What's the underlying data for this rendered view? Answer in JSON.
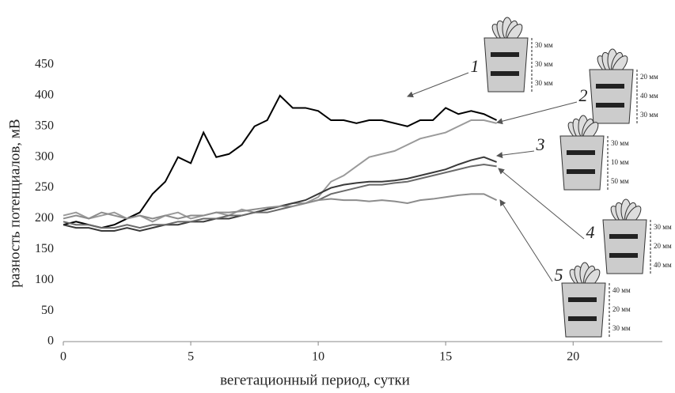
{
  "chart_data": {
    "type": "line",
    "ylabel": "разность потенциалов, мВ",
    "xlabel": "вегетационный период, сутки",
    "xlim": [
      0,
      23.5
    ],
    "ylim": [
      0,
      450
    ],
    "xticks": [
      0,
      5,
      10,
      15,
      20
    ],
    "yticks": [
      0,
      50,
      100,
      150,
      200,
      250,
      300,
      350,
      400,
      450
    ],
    "x": [
      0,
      0.5,
      1,
      1.5,
      2,
      2.5,
      3,
      3.5,
      4,
      4.5,
      5,
      5.5,
      6,
      6.5,
      7,
      7.5,
      8,
      8.5,
      9,
      9.5,
      10,
      10.5,
      11,
      11.5,
      12,
      12.5,
      13,
      13.5,
      14,
      14.5,
      15,
      15.5,
      16,
      16.5,
      17
    ],
    "series": [
      {
        "name": "1",
        "color": "#000000",
        "values": [
          190,
          195,
          190,
          185,
          190,
          200,
          210,
          240,
          260,
          300,
          290,
          340,
          300,
          305,
          320,
          350,
          360,
          400,
          380,
          380,
          375,
          360,
          360,
          355,
          360,
          360,
          355,
          350,
          360,
          360,
          380,
          370,
          375,
          370,
          360
        ]
      },
      {
        "name": "2",
        "color": "#9a9a9a",
        "values": [
          205,
          210,
          200,
          205,
          210,
          200,
          205,
          195,
          205,
          210,
          200,
          205,
          210,
          205,
          215,
          210,
          215,
          220,
          225,
          225,
          235,
          260,
          270,
          285,
          300,
          305,
          310,
          320,
          330,
          335,
          340,
          350,
          360,
          360,
          355
        ]
      },
      {
        "name": "3",
        "color": "#3a3a3a",
        "values": [
          190,
          185,
          185,
          180,
          180,
          185,
          180,
          185,
          190,
          190,
          195,
          195,
          200,
          200,
          205,
          210,
          215,
          220,
          225,
          230,
          240,
          250,
          255,
          258,
          260,
          260,
          262,
          265,
          270,
          275,
          280,
          288,
          295,
          300,
          292
        ]
      },
      {
        "name": "4",
        "color": "#6a6a6a",
        "values": [
          195,
          190,
          190,
          185,
          185,
          190,
          185,
          190,
          190,
          195,
          195,
          200,
          200,
          205,
          205,
          210,
          210,
          215,
          220,
          225,
          230,
          240,
          245,
          250,
          255,
          255,
          258,
          260,
          265,
          270,
          275,
          280,
          285,
          288,
          285
        ]
      },
      {
        "name": "5",
        "color": "#8c8c8c",
        "values": [
          200,
          205,
          200,
          210,
          205,
          200,
          205,
          200,
          205,
          200,
          205,
          205,
          210,
          210,
          212,
          215,
          218,
          220,
          220,
          225,
          230,
          232,
          230,
          230,
          228,
          230,
          228,
          225,
          230,
          232,
          235,
          238,
          240,
          240,
          230
        ]
      }
    ],
    "insets": [
      {
        "label": "1",
        "depths": [
          "30 мм",
          "30 мм",
          "30 мм"
        ]
      },
      {
        "label": "2",
        "depths": [
          "20 мм",
          "40 мм",
          "30 мм"
        ]
      },
      {
        "label": "3",
        "depths": [
          "30 мм",
          "10 мм",
          "50 мм"
        ]
      },
      {
        "label": "4",
        "depths": [
          "30 мм",
          "20 мм",
          "40 мм"
        ]
      },
      {
        "label": "5",
        "depths": [
          "40 мм",
          "20 мм",
          "30 мм"
        ]
      }
    ]
  }
}
